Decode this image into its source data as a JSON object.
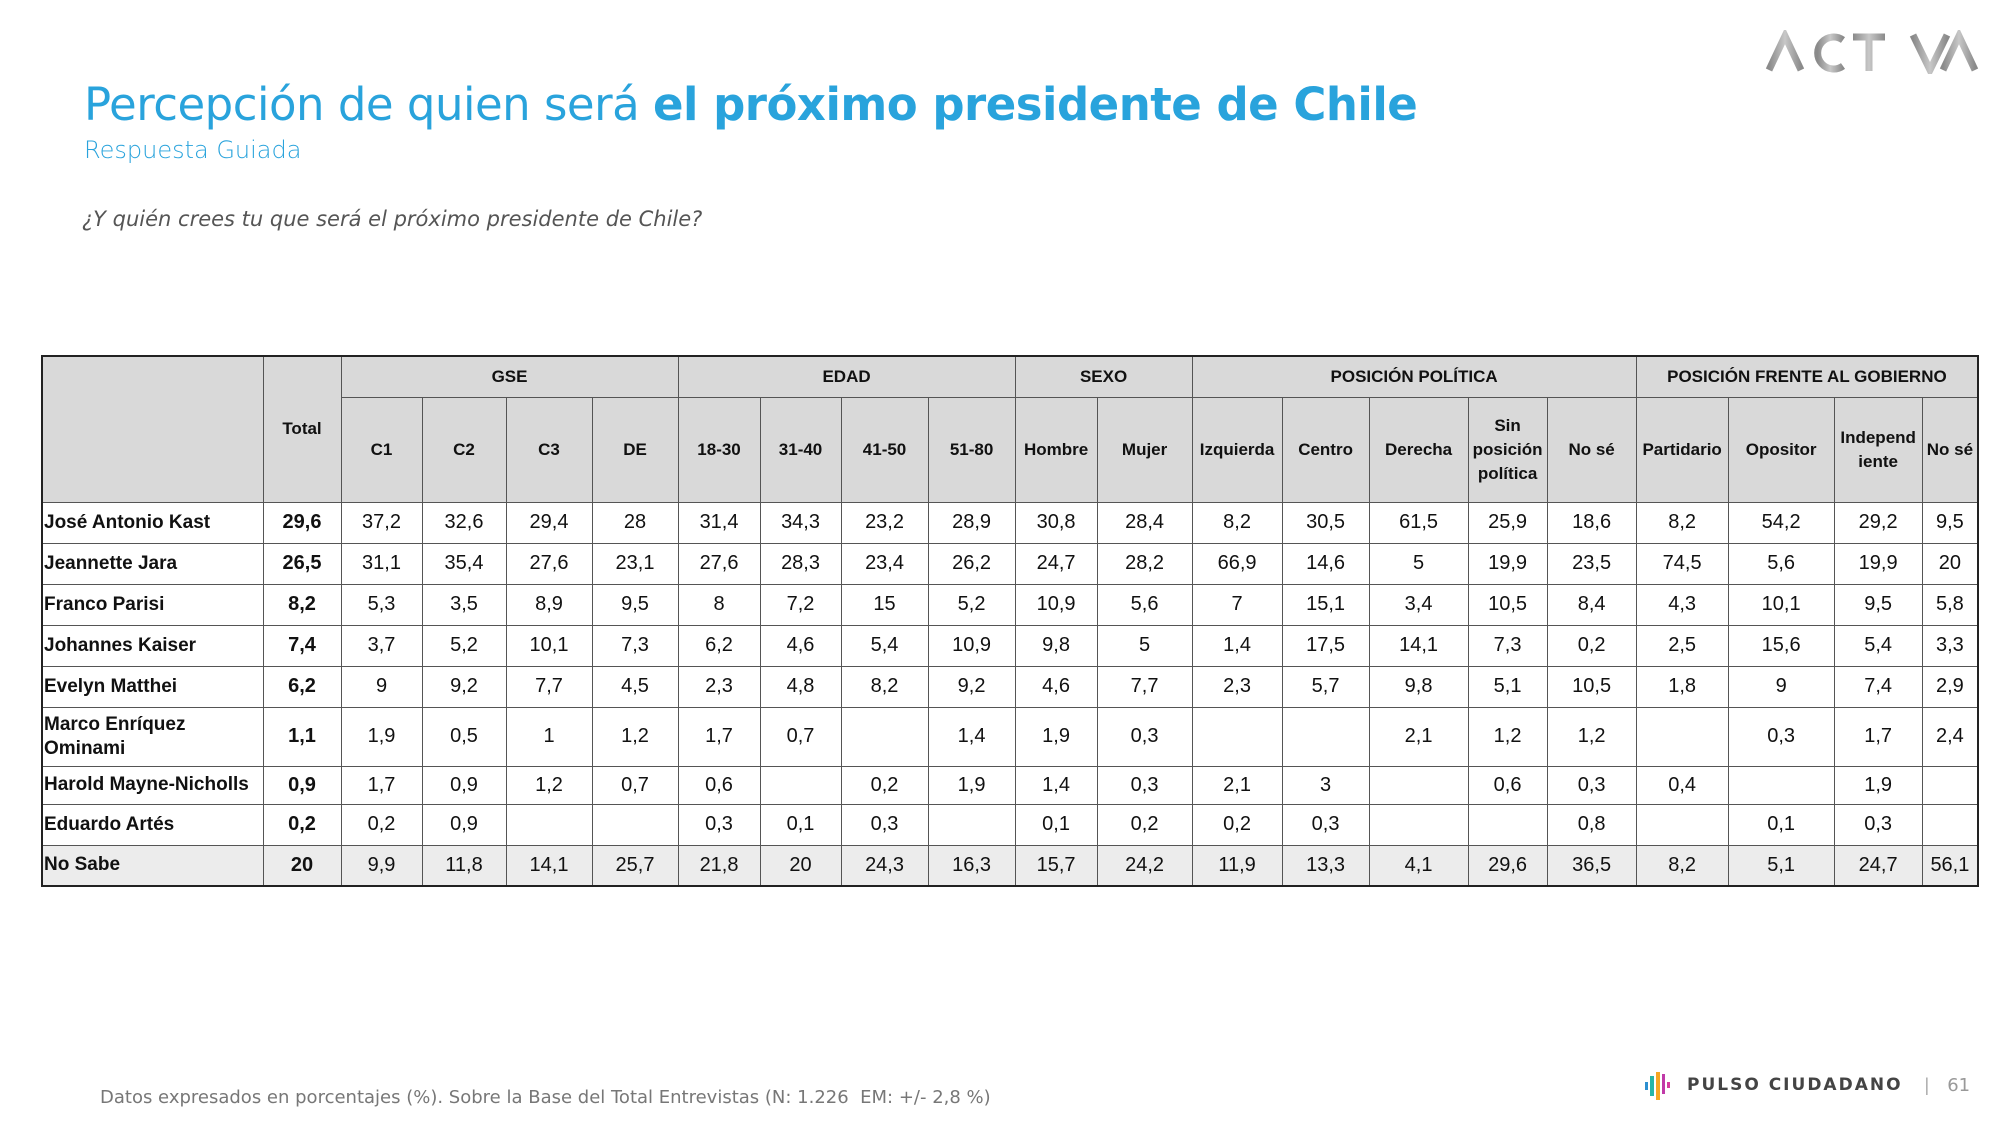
{
  "brand": {
    "logo": "ACTIVA",
    "footer_logo": "PULSO CIUDADANO",
    "page_number": "61"
  },
  "title": {
    "regular": "Percepción de quien será ",
    "bold": "el próximo presidente de Chile"
  },
  "subtitle": "Respuesta Guiada",
  "question": "¿Y quién crees tu que será el próximo presidente de Chile?",
  "table": {
    "total_header": "Total",
    "groups": [
      "GSE",
      "EDAD",
      "SEXO",
      "POSICIÓN POLÍTICA",
      "POSICIÓN FRENTE AL GOBIERNO"
    ],
    "columns": [
      "C1",
      "C2",
      "C3",
      "DE",
      "18-30",
      "31-40",
      "41-50",
      "51-80",
      "Hombre",
      "Mujer",
      "Izquierda",
      "Centro",
      "Derecha",
      "Sin posición política",
      "No sé",
      "Partidario",
      "Opositor",
      "Independ iente",
      "No sé"
    ],
    "rows": [
      {
        "name": "José Antonio Kast",
        "total": "29,6",
        "values": [
          "37,2",
          "32,6",
          "29,4",
          "28",
          "31,4",
          "34,3",
          "23,2",
          "28,9",
          "30,8",
          "28,4",
          "8,2",
          "30,5",
          "61,5",
          "25,9",
          "18,6",
          "8,2",
          "54,2",
          "29,2",
          "9,5"
        ]
      },
      {
        "name": "Jeannette Jara",
        "total": "26,5",
        "values": [
          "31,1",
          "35,4",
          "27,6",
          "23,1",
          "27,6",
          "28,3",
          "23,4",
          "26,2",
          "24,7",
          "28,2",
          "66,9",
          "14,6",
          "5",
          "19,9",
          "23,5",
          "74,5",
          "5,6",
          "19,9",
          "20"
        ]
      },
      {
        "name": "Franco Parisi",
        "total": "8,2",
        "values": [
          "5,3",
          "3,5",
          "8,9",
          "9,5",
          "8",
          "7,2",
          "15",
          "5,2",
          "10,9",
          "5,6",
          "7",
          "15,1",
          "3,4",
          "10,5",
          "8,4",
          "4,3",
          "10,1",
          "9,5",
          "5,8"
        ]
      },
      {
        "name": "Johannes Kaiser",
        "total": "7,4",
        "values": [
          "3,7",
          "5,2",
          "10,1",
          "7,3",
          "6,2",
          "4,6",
          "5,4",
          "10,9",
          "9,8",
          "5",
          "1,4",
          "17,5",
          "14,1",
          "7,3",
          "0,2",
          "2,5",
          "15,6",
          "5,4",
          "3,3"
        ]
      },
      {
        "name": "Evelyn Matthei",
        "total": "6,2",
        "values": [
          "9",
          "9,2",
          "7,7",
          "4,5",
          "2,3",
          "4,8",
          "8,2",
          "9,2",
          "4,6",
          "7,7",
          "2,3",
          "5,7",
          "9,8",
          "5,1",
          "10,5",
          "1,8",
          "9",
          "7,4",
          "2,9"
        ]
      },
      {
        "name": "Marco Enríquez Ominami",
        "total": "1,1",
        "values": [
          "1,9",
          "0,5",
          "1",
          "1,2",
          "1,7",
          "0,7",
          "",
          "1,4",
          "1,9",
          "0,3",
          "",
          "",
          "2,1",
          "1,2",
          "1,2",
          "",
          "0,3",
          "1,7",
          "2,4"
        ]
      },
      {
        "name": "Harold Mayne-Nicholls",
        "total": "0,9",
        "values": [
          "1,7",
          "0,9",
          "1,2",
          "0,7",
          "0,6",
          "",
          "0,2",
          "1,9",
          "1,4",
          "0,3",
          "2,1",
          "3",
          "",
          "0,6",
          "0,3",
          "0,4",
          "",
          "1,9",
          ""
        ]
      },
      {
        "name": "Eduardo Artés",
        "total": "0,2",
        "values": [
          "0,2",
          "0,9",
          "",
          "",
          "0,3",
          "0,1",
          "0,3",
          "",
          "0,1",
          "0,2",
          "0,2",
          "0,3",
          "",
          "",
          "0,8",
          "",
          "0,1",
          "0,3",
          ""
        ]
      },
      {
        "name": "No Sabe",
        "total": "20",
        "values": [
          "9,9",
          "11,8",
          "14,1",
          "25,7",
          "21,8",
          "20",
          "24,3",
          "16,3",
          "15,7",
          "24,2",
          "11,9",
          "13,3",
          "4,1",
          "29,6",
          "36,5",
          "8,2",
          "5,1",
          "24,7",
          "56,1"
        ]
      }
    ]
  },
  "footer": "Datos expresados en porcentajes (%). Sobre la Base del Total Entrevistas (N: 1.226  EM: +/- 2,8 %)"
}
